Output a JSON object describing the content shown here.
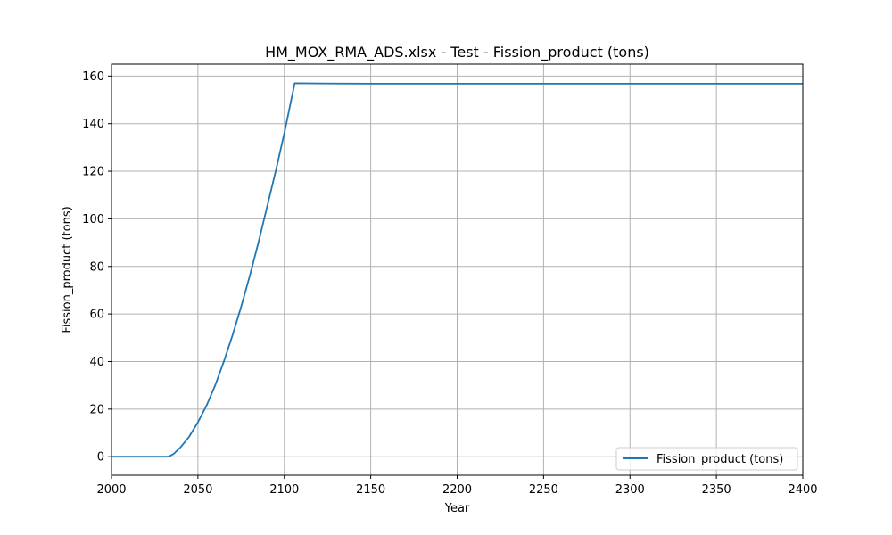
{
  "chart_data": {
    "type": "line",
    "title": "HM_MOX_RMA_ADS.xlsx - Test - Fission_product (tons)",
    "xlabel": "Year",
    "ylabel": "Fission_product (tons)",
    "xlim": [
      2000,
      2400
    ],
    "ylim": [
      -7.8,
      165
    ],
    "xticks": [
      2000,
      2050,
      2100,
      2150,
      2200,
      2250,
      2300,
      2350,
      2400
    ],
    "yticks": [
      0,
      20,
      40,
      60,
      80,
      100,
      120,
      140,
      160
    ],
    "grid": true,
    "legend_position": "lower-right",
    "series": [
      {
        "name": "Fission_product (tons)",
        "color": "#1f77b4",
        "x": [
          2000,
          2033,
          2036,
          2040,
          2045,
          2050,
          2055,
          2060,
          2065,
          2070,
          2075,
          2080,
          2085,
          2090,
          2095,
          2100,
          2106,
          2120,
          2150,
          2200,
          2250,
          2300,
          2350,
          2400
        ],
        "y": [
          0,
          0,
          1.2,
          4,
          8.5,
          14.5,
          21.5,
          30,
          40,
          51,
          63,
          76,
          90,
          105,
          120,
          136,
          157,
          156.9,
          156.8,
          156.8,
          156.8,
          156.8,
          156.8,
          156.8
        ]
      }
    ]
  }
}
